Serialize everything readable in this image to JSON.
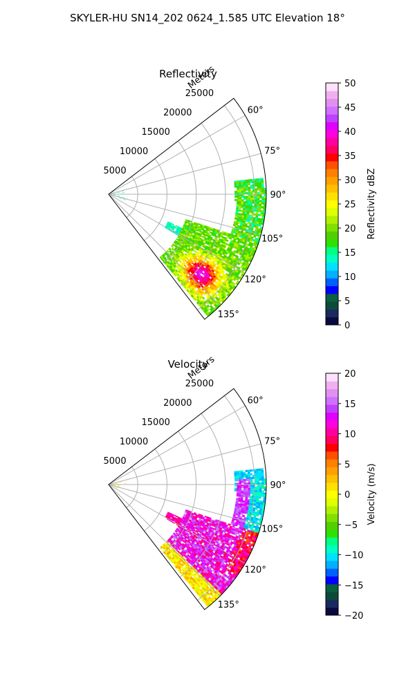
{
  "figure": {
    "title": "SKYLER-HU  SN14_202  0624_1.585 UTC Elevation 18°"
  },
  "chart_data": [
    {
      "type": "heatmap",
      "title": "Reflectivity",
      "radial_label": "Meters",
      "radial_ticks": [
        5000,
        10000,
        15000,
        20000,
        25000
      ],
      "radial_tick_labels": [
        "5000",
        "10000",
        "15000",
        "20000",
        "25000"
      ],
      "rmax": 27000,
      "azimuth_range_deg": [
        52.5,
        142.5
      ],
      "azimuth_ticks_deg": [
        60,
        75,
        90,
        105,
        120,
        135
      ],
      "azimuth_tick_labels": [
        "60°",
        "75°",
        "90°",
        "105°",
        "120°",
        "135°"
      ],
      "grid": true,
      "colorbar": {
        "label": "Reflectivity dBZ",
        "min": 0,
        "max": 50,
        "ticks": [
          0,
          5,
          10,
          15,
          20,
          25,
          30,
          35,
          40,
          45,
          50
        ],
        "tick_labels": [
          "0",
          "5",
          "10",
          "15",
          "20",
          "25",
          "30",
          "35",
          "40",
          "45",
          "50"
        ],
        "colors": [
          "#0a0a40",
          "#1a2a60",
          "#0c4a3a",
          "#0b6040",
          "#0000ff",
          "#0060ff",
          "#00b0ff",
          "#00e0ff",
          "#00ffc0",
          "#00ff80",
          "#30e000",
          "#50d000",
          "#80e000",
          "#b0f000",
          "#e0ff00",
          "#ffff00",
          "#ffe000",
          "#ffc000",
          "#ffa000",
          "#ff8000",
          "#ff5000",
          "#ff0000",
          "#ff0060",
          "#ff00a0",
          "#ff00e0",
          "#e000ff",
          "#c040ff",
          "#d070ff",
          "#e090f0",
          "#f0b0f0",
          "#ffe0ff"
        ]
      }
    },
    {
      "type": "heatmap",
      "title": "Velocity",
      "radial_label": "Meters",
      "radial_ticks": [
        5000,
        10000,
        15000,
        20000,
        25000
      ],
      "radial_tick_labels": [
        "5000",
        "10000",
        "15000",
        "20000",
        "25000"
      ],
      "rmax": 27000,
      "azimuth_range_deg": [
        52.5,
        142.5
      ],
      "azimuth_ticks_deg": [
        60,
        75,
        90,
        105,
        120,
        135
      ],
      "azimuth_tick_labels": [
        "60°",
        "75°",
        "90°",
        "105°",
        "120°",
        "135°"
      ],
      "grid": true,
      "colorbar": {
        "label": "Velocity (m/s)",
        "min": -20,
        "max": 20,
        "ticks": [
          -20,
          -15,
          -10,
          -5,
          0,
          5,
          10,
          15,
          20
        ],
        "tick_labels": [
          "−20",
          "−15",
          "−10",
          "−5",
          "0",
          "5",
          "10",
          "15",
          "20"
        ],
        "colors": [
          "#0a0a40",
          "#1a2a60",
          "#0c4a3a",
          "#0b6040",
          "#0000ff",
          "#0060ff",
          "#00b0ff",
          "#00e0ff",
          "#00ffc0",
          "#00ff80",
          "#30e000",
          "#50d000",
          "#80e000",
          "#b0f000",
          "#e0ff00",
          "#ffff00",
          "#ffe000",
          "#ffc000",
          "#ffa000",
          "#ff8000",
          "#ff5000",
          "#ff0000",
          "#ff0060",
          "#ff00a0",
          "#ff00e0",
          "#e000ff",
          "#c040ff",
          "#d070ff",
          "#e090f0",
          "#f0b0f0",
          "#ffe0ff"
        ]
      }
    }
  ]
}
